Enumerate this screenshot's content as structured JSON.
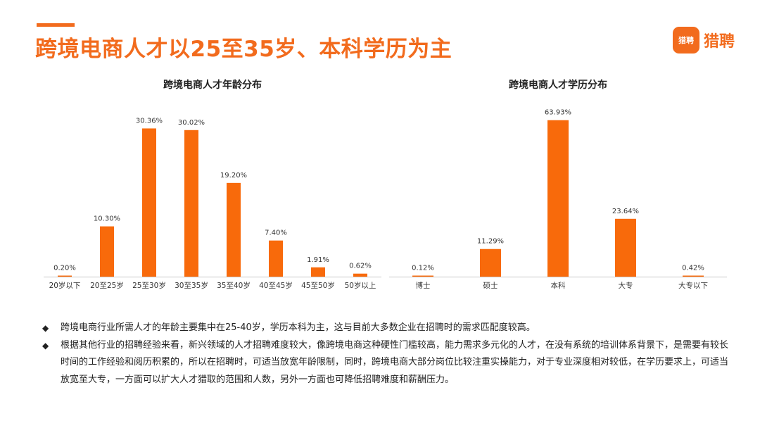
{
  "header": {
    "title": "跨境电商人才以25至35岁、本科学历为主",
    "logo_mark": "猎聘",
    "logo_text": "猎聘"
  },
  "colors": {
    "accent": "#f26b1d",
    "bar": "#f86a0b"
  },
  "chart_data": [
    {
      "type": "bar",
      "title": "跨境电商人才年龄分布",
      "categories": [
        "20岁以下",
        "20至25岁",
        "25至30岁",
        "30至35岁",
        "35至40岁",
        "40至45岁",
        "45至50岁",
        "50岁以上"
      ],
      "values": [
        0.2,
        10.3,
        30.36,
        30.02,
        19.2,
        7.4,
        1.91,
        0.62
      ],
      "data_labels": [
        "0.20%",
        "10.30%",
        "30.36%",
        "30.02%",
        "19.20%",
        "7.40%",
        "1.91%",
        "0.62%"
      ],
      "unit": "%",
      "ylim": [
        0,
        31
      ],
      "grid": false
    },
    {
      "type": "bar",
      "title": "跨境电商人才学历分布",
      "categories": [
        "博士",
        "硕士",
        "本科",
        "大专",
        "大专以下"
      ],
      "values": [
        0.12,
        11.29,
        63.93,
        23.64,
        0.42
      ],
      "data_labels": [
        "0.12%",
        "11.29%",
        "63.93%",
        "23.64%",
        "0.42%"
      ],
      "unit": "%",
      "ylim": [
        0,
        65
      ],
      "grid": false
    }
  ],
  "bullets": [
    {
      "icon": "◆",
      "text": "跨境电商行业所需人才的年龄主要集中在25-40岁，学历本科为主，这与目前大多数企业在招聘时的需求匹配度较高。"
    },
    {
      "icon": "◆",
      "text": "根据其他行业的招聘经验来看，新兴领域的人才招聘难度较大，像跨境电商这种硬性门槛较高，能力需求多元化的人才，在没有系统的培训体系背景下，是需要有较长时间的工作经验和阅历积累的，所以在招聘时，可适当放宽年龄限制，同时，跨境电商大部分岗位比较注重实操能力，对于专业深度相对较低，在学历要求上，可适当放宽至大专，一方面可以扩大人才猎取的范围和人数，另外一方面也可降低招聘难度和薪酬压力。"
    }
  ]
}
